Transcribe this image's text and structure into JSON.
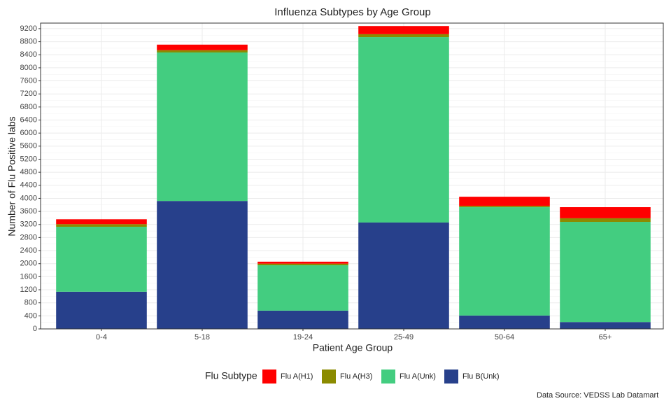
{
  "chart_data": {
    "type": "stacked-bar",
    "title": "Influenza Subtypes by Age Group",
    "x_label": "Patient Age Group",
    "y_label": "Number of Flu Positive labs",
    "legend_title": "Flu Subtype",
    "caption": "Data Source: VEDSS Lab Datamart",
    "categories": [
      "0-4",
      "5-18",
      "19-24",
      "25-49",
      "50-64",
      "65+"
    ],
    "series": [
      {
        "name": "Flu A(H1)",
        "color": "#ff0000",
        "values": [
          150,
          170,
          60,
          250,
          280,
          340
        ]
      },
      {
        "name": "Flu A(H3)",
        "color": "#8b8b00",
        "values": [
          80,
          70,
          50,
          90,
          40,
          110
        ]
      },
      {
        "name": "Flu A(Unk)",
        "color": "#43cd80",
        "values": [
          1990,
          4550,
          1390,
          5680,
          3320,
          3070
        ]
      },
      {
        "name": "Flu B(Unk)",
        "color": "#27408b",
        "values": [
          1140,
          3920,
          560,
          3260,
          410,
          210
        ]
      }
    ],
    "ylim": [
      0,
      9370
    ],
    "yticks": [
      0,
      400,
      800,
      1200,
      1600,
      2000,
      2400,
      2800,
      3200,
      3600,
      4000,
      4400,
      4800,
      5200,
      5600,
      6000,
      6400,
      6800,
      7200,
      7600,
      8000,
      8400,
      8800,
      9200
    ],
    "grid": true
  }
}
